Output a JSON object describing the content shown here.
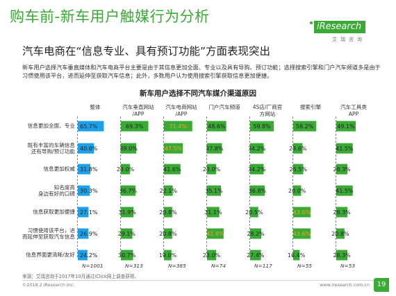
{
  "slide": {
    "title": "购车前-新车用户触媒行为分析",
    "subtitle": "汽车电商在“信息专业、具有预订功能”方面表现突出",
    "description": "新车用户选择汽车垂直媒体和汽车电商平台主要是由于其信息更加全面、专业以及具有导购、预订功能；选择搜索引擎和门户汽车频道多是由于习惯使用该平台，进而延伸至获取汽车信息；此外，多数用户认为使用搜索引擎获取信息更加便捷。",
    "source": "来源：艾瑞咨询于2017年10月通过iClick网上调查获得。",
    "copyright": "©2018.2 iResearch Inc.",
    "website": "www.iresearch.com.cn",
    "page_number": "19"
  },
  "logo": {
    "name": "iResearch",
    "subtext": "艾瑞咨询"
  },
  "colors": {
    "brand_green": "#3aa935",
    "bar_overall": "#1ea0e6",
    "bar_channel": "#3aa935",
    "highlight_text": "#f5a623",
    "dashed_line": "#3a9bd6"
  },
  "chart_data": {
    "type": "bar",
    "title": "新车用户选择不同汽车媒介渠道原因",
    "categories": [
      "信息更加全面、专业",
      "既有丰富的车辆信息\n还有导购/预订功能",
      "信息更加权威",
      "知名度高\n身边有好的口碑",
      "信息获取更加便捷",
      "习惯使用该平台，进\n而延伸至获取汽车信息",
      "信息界面更清晰/友好"
    ],
    "series": [
      {
        "name": "整体",
        "values": [
          65.7,
          40.8,
          31.8,
          30.3,
          27.1,
          26.9,
          24.2
        ],
        "sample": "N=1001",
        "highlight": []
      },
      {
        "name": "汽车垂直网站\n/APP",
        "values": [
          69.3,
          39.0,
          23.0,
          36.7,
          31.9,
          29.1,
          30.7
        ],
        "sample": "N=313",
        "highlight": []
      },
      {
        "name": "汽车电商网站\n/APP",
        "values": [
          71.4,
          47.5,
          41.6,
          22.1,
          20.8,
          20.8,
          19.0
        ],
        "sample": "N=385",
        "highlight": [
          0,
          1
        ]
      },
      {
        "name": "门户汽车频道",
        "values": [
          48.6,
          37.8,
          23.0,
          35.1,
          31.1,
          41.9,
          23.0
        ],
        "sample": "N=74",
        "highlight": [
          5
        ]
      },
      {
        "name": "4S店/厂商官\n方网站",
        "values": [
          59.8,
          34.2,
          34.2,
          36.8,
          20.5,
          28.2,
          27.4
        ],
        "sample": "N=117",
        "highlight": []
      },
      {
        "name": "搜索引擎",
        "values": [
          58.2,
          23.6,
          25.5,
          20.0,
          43.6,
          43.6,
          16.4
        ],
        "sample": "N=55",
        "highlight": [
          4,
          5
        ]
      },
      {
        "name": "汽车工具类\nAPP",
        "values": [
          49.1,
          41.5,
          28.3,
          41.5,
          28.3,
          20.8,
          28.3
        ],
        "sample": "N=53",
        "highlight": []
      }
    ],
    "value_format": "percent_1dp"
  }
}
